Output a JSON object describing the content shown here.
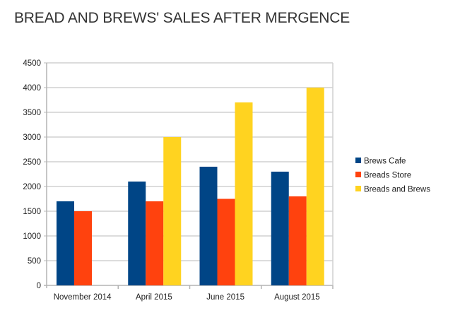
{
  "chart_data": {
    "type": "bar",
    "title": "BREAD AND BREWS' SALES AFTER MERGENCE",
    "xlabel": "",
    "ylabel": "",
    "categories": [
      "November 2014",
      "April 2015",
      "June 2015",
      "August 2015"
    ],
    "series": [
      {
        "name": "Brews Cafe",
        "color": "#004586",
        "values": [
          1700,
          2100,
          2400,
          2300
        ]
      },
      {
        "name": "Breads Store",
        "color": "#ff420e",
        "values": [
          1500,
          1700,
          1750,
          1800
        ]
      },
      {
        "name": "Breads and Brews",
        "color": "#ffd320",
        "values": [
          null,
          3000,
          3700,
          4000
        ]
      }
    ],
    "ylim": [
      0,
      4500
    ],
    "yticks": [
      0,
      500,
      1000,
      1500,
      2000,
      2500,
      3000,
      3500,
      4000,
      4500
    ],
    "grid": true,
    "legend": "right"
  }
}
